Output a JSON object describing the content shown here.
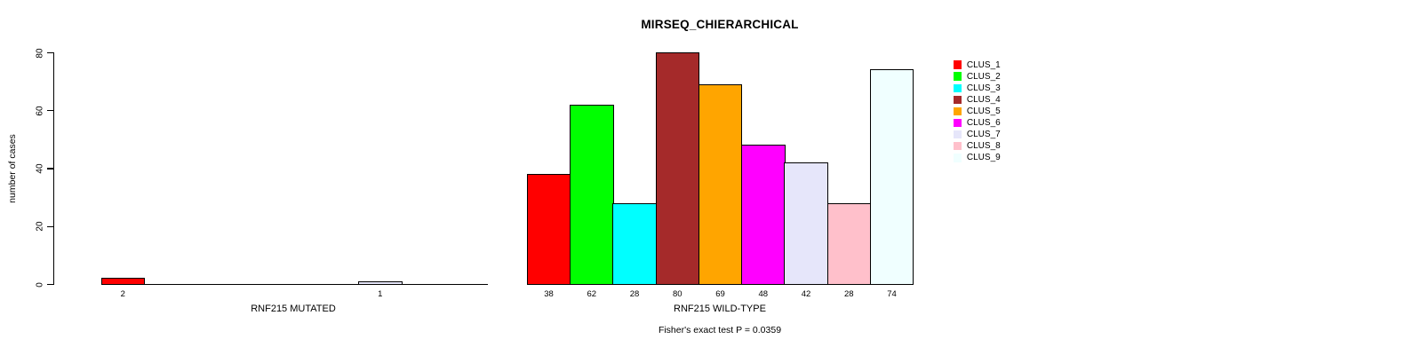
{
  "title": "MIRSEQ_CHIERARCHICAL",
  "palette": [
    "#FF0000",
    "#00FF00",
    "#00FFFF",
    "#A52A2A",
    "#FFA500",
    "#FF00FF",
    "#E6E6FA",
    "#FFC0CB",
    "#F0FFFF"
  ],
  "y_axis": {
    "label": "number of cases",
    "ticks": [
      "0",
      "20",
      "40",
      "60",
      "80"
    ],
    "tick_values": [
      0,
      20,
      40,
      60,
      80
    ],
    "max": 80
  },
  "legend": {
    "items": [
      {
        "label": "CLUS_1",
        "color": "#FF0000"
      },
      {
        "label": "CLUS_2",
        "color": "#00FF00"
      },
      {
        "label": "CLUS_3",
        "color": "#00FFFF"
      },
      {
        "label": "CLUS_4",
        "color": "#A52A2A"
      },
      {
        "label": "CLUS_5",
        "color": "#FFA500"
      },
      {
        "label": "CLUS_6",
        "color": "#FF00FF"
      },
      {
        "label": "CLUS_7",
        "color": "#E6E6FA"
      },
      {
        "label": "CLUS_8",
        "color": "#FFC0CB"
      },
      {
        "label": "CLUS_9",
        "color": "#F0FFFF"
      }
    ],
    "position": "right"
  },
  "footer": {
    "fisher_note": "Fisher's exact test P = 0.0359"
  },
  "chart_data": [
    {
      "type": "bar",
      "title": "MIRSEQ_CHIERARCHICAL",
      "xlabel": "RNF215 MUTATED",
      "ylabel": "number of cases",
      "ylim": [
        0,
        80
      ],
      "grid": false,
      "categories": [
        "CLUS_1",
        "CLUS_2",
        "CLUS_3",
        "CLUS_4",
        "CLUS_5",
        "CLUS_6",
        "CLUS_7",
        "CLUS_8",
        "CLUS_9"
      ],
      "values": [
        2,
        0,
        0,
        0,
        0,
        0,
        1,
        0,
        0
      ],
      "bar_labels": [
        "2",
        "",
        "",
        "",
        "",
        "",
        "1",
        "",
        ""
      ]
    },
    {
      "type": "bar",
      "title": "MIRSEQ_CHIERARCHICAL",
      "xlabel": "RNF215 WILD-TYPE",
      "ylabel": "number of cases",
      "ylim": [
        0,
        80
      ],
      "grid": false,
      "categories": [
        "CLUS_1",
        "CLUS_2",
        "CLUS_3",
        "CLUS_4",
        "CLUS_5",
        "CLUS_6",
        "CLUS_7",
        "CLUS_8",
        "CLUS_9"
      ],
      "values": [
        38,
        62,
        28,
        80,
        69,
        48,
        42,
        28,
        74
      ],
      "bar_labels": [
        "38",
        "62",
        "28",
        "80",
        "69",
        "48",
        "42",
        "28",
        "74"
      ]
    }
  ]
}
